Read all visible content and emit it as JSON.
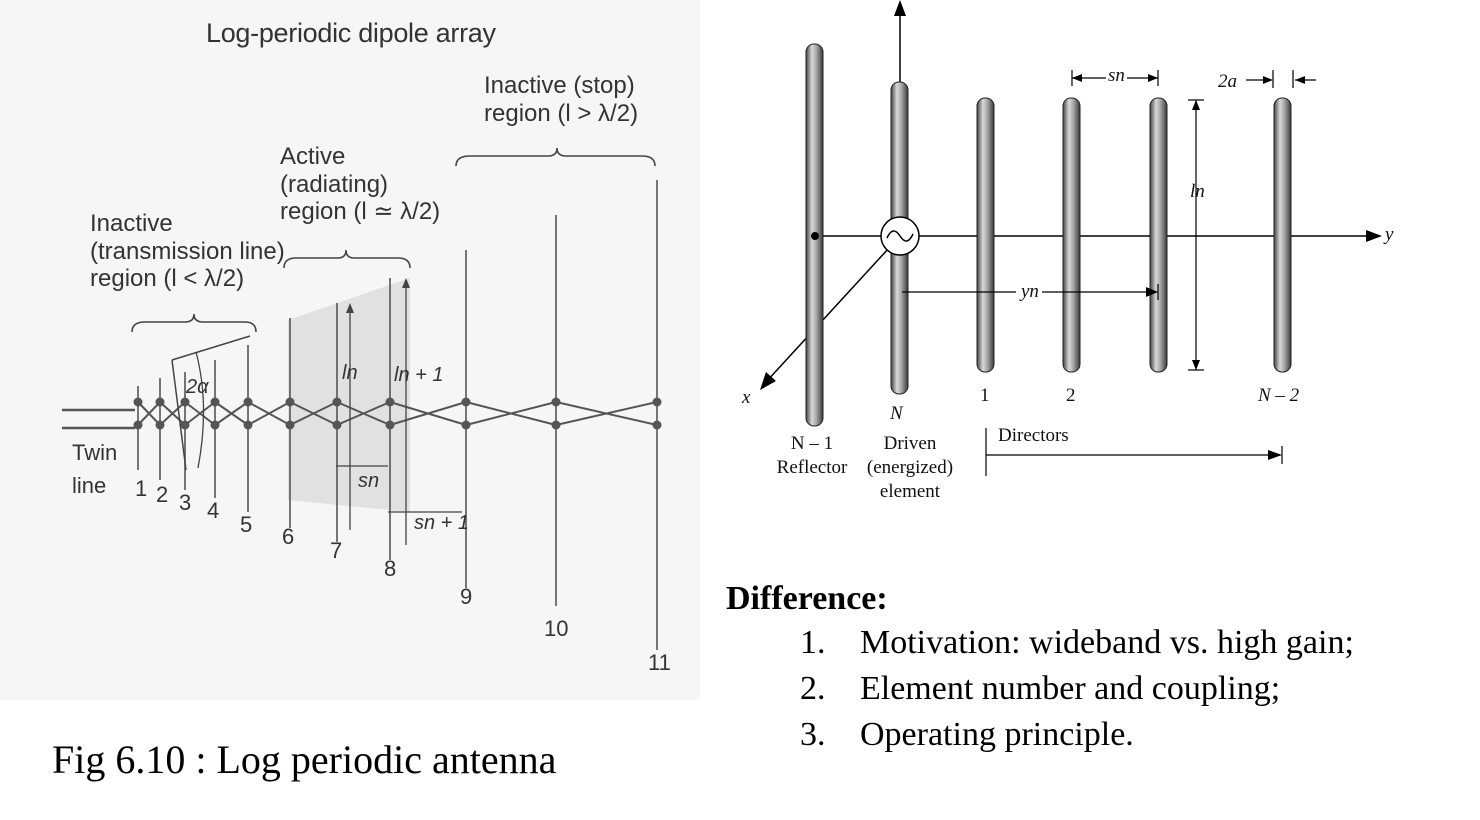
{
  "lpda": {
    "title": "Log-periodic dipole array",
    "inactive_stop": [
      "Inactive (stop)",
      "region (l > λ/2)"
    ],
    "active": [
      "Active",
      "(radiating)",
      "region (l ≃ λ/2)"
    ],
    "inactive_tl": [
      "Inactive",
      "(transmission line)",
      "region (l < λ/2)"
    ],
    "twin_line": [
      "Twin",
      "line"
    ],
    "element_numbers": [
      "1",
      "2",
      "3",
      "4",
      "5",
      "6",
      "7",
      "8",
      "9",
      "10",
      "11"
    ],
    "symbols": {
      "alpha": "2α",
      "ln": "ln",
      "ln1": "ln + 1",
      "sn": "sn",
      "sn1": "sn + 1"
    }
  },
  "caption": "Fig 6.10 : Log periodic antenna",
  "yagi": {
    "axis_x": "x",
    "axis_y": "y",
    "sn": "sn",
    "two_a": "2a",
    "ln": "ln",
    "yn": "yn",
    "labels": {
      "reflector": [
        "N – 1",
        "Reflector"
      ],
      "driven_n": "N",
      "driven": [
        "Driven",
        "(energized)",
        "element"
      ],
      "d1": "1",
      "d2": "2",
      "dn2": "N – 2",
      "directors": "Directors"
    }
  },
  "difference": {
    "title": "Difference:",
    "items": [
      {
        "num": "1.",
        "text": "Motivation: wideband vs. high gain;"
      },
      {
        "num": "2.",
        "text": "Element number and coupling;"
      },
      {
        "num": "3.",
        "text": "Operating principle."
      }
    ]
  }
}
